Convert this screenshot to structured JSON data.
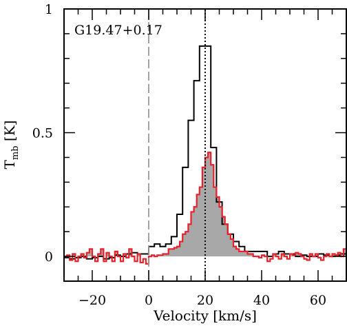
{
  "chart_data": {
    "type": "line",
    "title": "",
    "annotation": "G19.47+0.17",
    "xlabel": "Velocity [km/s]",
    "ylabel": "T",
    "ylabel_sub": "mb",
    "ylabel_unit": " [K]",
    "xlim": [
      -30,
      70
    ],
    "ylim": [
      -0.1,
      1.0
    ],
    "x_ticks": [
      -20,
      0,
      20,
      40,
      60
    ],
    "x_tick_labels": [
      "−20",
      "0",
      "20",
      "40",
      "60"
    ],
    "y_ticks": [
      0,
      0.5,
      1
    ],
    "y_tick_labels": [
      "0",
      "0.5",
      "1"
    ],
    "grid": false,
    "reference_lines": [
      {
        "x": 0,
        "style": "dashed",
        "color": "#999999"
      },
      {
        "x": 20,
        "style": "dotted",
        "color": "#000000"
      }
    ],
    "series": [
      {
        "style": "step",
        "color": "#000000",
        "bin_width": 2,
        "x": [
          -30,
          -28,
          -26,
          -24,
          -22,
          -20,
          -18,
          -16,
          -14,
          -12,
          -10,
          -8,
          -6,
          -4,
          -2,
          0,
          2,
          4,
          6,
          8,
          10,
          12,
          14,
          16,
          18,
          20,
          22,
          24,
          26,
          28,
          30,
          32,
          34,
          36,
          38,
          40,
          42,
          44,
          46,
          48,
          50,
          52,
          54,
          56,
          58,
          60,
          62,
          64,
          66,
          68
        ],
        "values": [
          -0.005,
          -0.01,
          -0.005,
          0.0,
          -0.01,
          -0.005,
          0.0,
          -0.01,
          -0.005,
          0.005,
          0.0,
          0.01,
          0.015,
          0.01,
          0.01,
          0.04,
          0.05,
          0.04,
          0.05,
          0.08,
          0.17,
          0.36,
          0.55,
          0.71,
          0.85,
          0.85,
          0.44,
          0.22,
          0.13,
          0.09,
          0.06,
          0.04,
          0.02,
          0.02,
          0.02,
          0.02,
          0.0,
          0.01,
          0.02,
          0.01,
          0.01,
          0.0,
          0.005,
          0.0,
          0.0,
          0.01,
          0.005,
          0.0,
          0.005,
          0.01
        ]
      },
      {
        "style": "step",
        "color": "#e8202a",
        "fill": "#a8a8a8",
        "bin_width": 1,
        "x": [
          -30,
          -29,
          -28,
          -27,
          -26,
          -25,
          -24,
          -23,
          -22,
          -21,
          -20,
          -19,
          -18,
          -17,
          -16,
          -15,
          -14,
          -13,
          -12,
          -11,
          -10,
          -9,
          -8,
          -7,
          -6,
          -5,
          -4,
          -3,
          -2,
          -1,
          0,
          1,
          2,
          3,
          4,
          5,
          6,
          7,
          8,
          9,
          10,
          11,
          12,
          13,
          14,
          15,
          16,
          17,
          18,
          19,
          20,
          21,
          22,
          23,
          24,
          25,
          26,
          27,
          28,
          29,
          30,
          31,
          32,
          33,
          34,
          35,
          36,
          37,
          38,
          39,
          40,
          41,
          42,
          43,
          44,
          45,
          46,
          47,
          48,
          49,
          50,
          51,
          52,
          53,
          54,
          55,
          56,
          57,
          58,
          59,
          60,
          61,
          62,
          63,
          64,
          65,
          66,
          67,
          68,
          69
        ],
        "values": [
          0.0,
          0.005,
          -0.015,
          0.01,
          -0.02,
          0.0,
          0.01,
          -0.005,
          0.015,
          0.03,
          0.0,
          -0.02,
          0.01,
          0.03,
          -0.02,
          0.015,
          0.0,
          -0.02,
          0.02,
          0.0,
          -0.02,
          0.01,
          -0.005,
          0.03,
          0.0,
          -0.02,
          0.01,
          -0.025,
          -0.01,
          -0.03,
          0.0,
          0.005,
          0.0,
          0.005,
          0.005,
          0.01,
          0.01,
          0.03,
          0.03,
          0.035,
          0.04,
          0.06,
          0.09,
          0.1,
          0.13,
          0.18,
          0.2,
          0.25,
          0.28,
          0.36,
          0.4,
          0.42,
          0.37,
          0.28,
          0.24,
          0.2,
          0.16,
          0.13,
          0.09,
          0.07,
          0.04,
          0.03,
          0.02,
          0.02,
          0.02,
          0.01,
          0.01,
          0.0,
          0.0,
          -0.005,
          0.005,
          0.0,
          -0.02,
          -0.01,
          0.01,
          0.0,
          -0.01,
          0.01,
          0.0,
          -0.01,
          0.01,
          0.005,
          0.015,
          0.01,
          0.0,
          -0.01,
          -0.015,
          0.01,
          0.0,
          0.01,
          -0.005,
          -0.015,
          0.0,
          0.01,
          0.0,
          0.01,
          0.005,
          0.015,
          0.0,
          0.03
        ]
      }
    ]
  }
}
